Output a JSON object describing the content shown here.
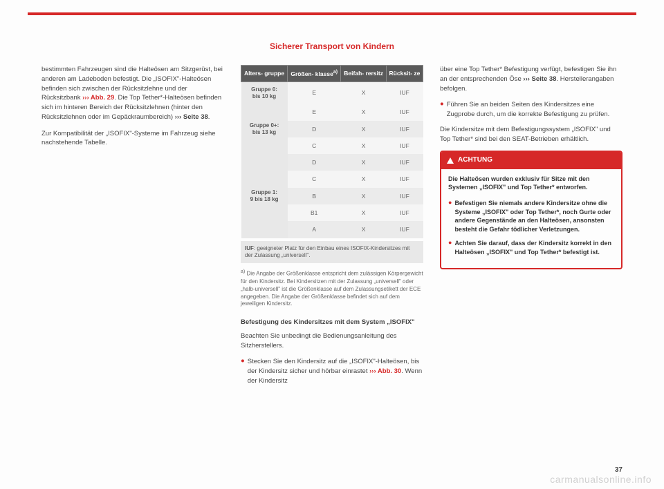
{
  "header": {
    "title": "Sicherer Transport von Kindern"
  },
  "pageNumber": "37",
  "watermark": "carmanualsonline.info",
  "col1": {
    "p1a": "bestimmten Fahrzeugen sind die Halteösen am Sitzgerüst, bei anderen am Ladeboden befestigt. Die „ISOFIX\"-Halteösen befinden sich zwischen der Rücksitzlehne und der Rücksitzbank ",
    "ref1": "››› Abb. 29",
    "p1b": ". Die Top Tether*-Halteösen befinden sich im hinteren Bereich der Rücksitzlehnen (hinter den Rücksitzlehnen oder im Gepäckraumbereich) ",
    "ref2": "››› Seite 38",
    "p1c": ".",
    "p2": "Zur Kompatibilität der „ISOFIX\"-Systeme im Fahrzeug siehe nachstehende Tabelle."
  },
  "table": {
    "headers": {
      "h1": "Alters-\ngruppe",
      "h2a": "Größen-\nklasse",
      "h2sup": "a)",
      "h3": "Beifah-\nrersitz",
      "h4": "Rücksit-\nze"
    },
    "groups": [
      {
        "label": "Gruppe 0:",
        "sublabel": "bis 10 kg",
        "rows": [
          {
            "klass": "E",
            "front": "X",
            "rear": "IUF"
          }
        ]
      },
      {
        "label": "Gruppe 0+:",
        "sublabel": "bis 13 kg",
        "rows": [
          {
            "klass": "E",
            "front": "X",
            "rear": "IUF"
          },
          {
            "klass": "D",
            "front": "X",
            "rear": "IUF"
          },
          {
            "klass": "C",
            "front": "X",
            "rear": "IUF"
          }
        ]
      },
      {
        "label": "Gruppe 1:",
        "sublabel": "9 bis 18 kg",
        "rows": [
          {
            "klass": "D",
            "front": "X",
            "rear": "IUF"
          },
          {
            "klass": "C",
            "front": "X",
            "rear": "IUF"
          },
          {
            "klass": "B",
            "front": "X",
            "rear": "IUF"
          },
          {
            "klass": "B1",
            "front": "X",
            "rear": "IUF"
          },
          {
            "klass": "A",
            "front": "X",
            "rear": "IUF"
          }
        ]
      }
    ],
    "iuf": "IUF: geeigneter Platz für den Einbau eines ISOFIX-Kindersitzes mit der Zulassung „universell\".",
    "footnote_sup": "a)",
    "footnote": " Die Angabe der Größenklasse entspricht dem zulässigen Körpergewicht für den Kindersitz. Bei Kindersitzen mit der Zulassung „universell\" oder „halb-universell\" ist die Größenklasse auf dem Zulassungsetikett der ECE angegeben. Die Angabe der Größenklasse befindet sich auf dem jeweiligen Kindersitz."
  },
  "col2": {
    "subhead": "Befestigung des Kindersitzes mit dem System „ISOFIX\"",
    "p1": "Beachten Sie unbedingt die Bedienungsanleitung des Sitzherstellers.",
    "b1a": "Stecken Sie den Kindersitz auf die „ISOFIX\"-Halteösen, bis der Kindersitz sicher und hörbar einrastet ",
    "b1ref": "››› Abb. 30",
    "b1b": ". Wenn der Kindersitz"
  },
  "col3": {
    "p1a": "über eine Top Tether* Befestigung verfügt, befestigen Sie ihn an der entsprechenden Öse ",
    "p1ref": "››› Seite 38",
    "p1b": ". Herstellerangaben befolgen.",
    "b1": "Führen Sie an beiden Seiten des Kindersitzes eine Zugprobe durch, um die korrekte Befestigung zu prüfen.",
    "p2": "Die Kindersitze mit dem Befestigungssystem „ISOFIX\" und Top Tether* sind bei den SEAT-Betrieben erhältlich."
  },
  "achtung": {
    "title": "ACHTUNG",
    "p1": "Die Halteösen wurden exklusiv für Sitze mit den Systemen „ISOFIX\" und Top Tether* entworfen.",
    "b1": "Befestigen Sie niemals andere Kindersitze ohne die Systeme „ISOFIX\" oder Top Tether*, noch Gurte oder andere Gegenstände an den Halteösen, ansonsten besteht die Gefahr tödlicher Verletzungen.",
    "b2": "Achten Sie darauf, dass der Kindersitz korrekt in den Halteösen „ISOFIX\" und Top Tether* befestigt ist."
  }
}
